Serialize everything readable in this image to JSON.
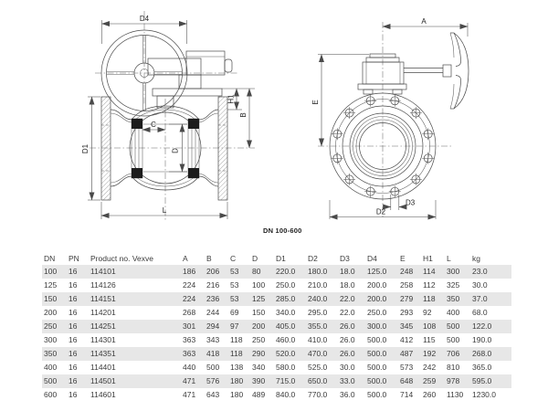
{
  "title": "DN 100-600",
  "drawing": {
    "left_view_labels": {
      "d4": "D4",
      "h1": "H1",
      "b": "B",
      "c": "C",
      "d1": "D1",
      "d": "D",
      "l": "L"
    },
    "right_view_labels": {
      "a": "A",
      "e": "E",
      "d3": "D3",
      "d2": "D2"
    }
  },
  "table": {
    "columns": [
      "DN",
      "PN",
      "Product no. Vexve",
      "A",
      "B",
      "C",
      "D",
      "D1",
      "D2",
      "D3",
      "D4",
      "E",
      "H1",
      "L",
      "kg"
    ],
    "rows": [
      [
        "100",
        "16",
        "114101",
        "186",
        "206",
        "53",
        "80",
        "220.0",
        "180.0",
        "18.0",
        "125.0",
        "248",
        "114",
        "300",
        "23.0"
      ],
      [
        "125",
        "16",
        "114126",
        "224",
        "216",
        "53",
        "100",
        "250.0",
        "210.0",
        "18.0",
        "200.0",
        "258",
        "112",
        "325",
        "30.0"
      ],
      [
        "150",
        "16",
        "114151",
        "224",
        "236",
        "53",
        "125",
        "285.0",
        "240.0",
        "22.0",
        "200.0",
        "279",
        "118",
        "350",
        "37.0"
      ],
      [
        "200",
        "16",
        "114201",
        "268",
        "244",
        "69",
        "150",
        "340.0",
        "295.0",
        "22.0",
        "250.0",
        "293",
        "92",
        "400",
        "68.0"
      ],
      [
        "250",
        "16",
        "114251",
        "301",
        "294",
        "97",
        "200",
        "405.0",
        "355.0",
        "26.0",
        "300.0",
        "345",
        "108",
        "500",
        "122.0"
      ],
      [
        "300",
        "16",
        "114301",
        "363",
        "343",
        "118",
        "250",
        "460.0",
        "410.0",
        "26.0",
        "500.0",
        "412",
        "115",
        "500",
        "190.0"
      ],
      [
        "350",
        "16",
        "114351",
        "363",
        "418",
        "118",
        "290",
        "520.0",
        "470.0",
        "26.0",
        "500.0",
        "487",
        "192",
        "706",
        "268.0"
      ],
      [
        "400",
        "16",
        "114401",
        "440",
        "500",
        "138",
        "340",
        "580.0",
        "525.0",
        "30.0",
        "500.0",
        "573",
        "242",
        "810",
        "365.0"
      ],
      [
        "500",
        "16",
        "114501",
        "471",
        "576",
        "180",
        "390",
        "715.0",
        "650.0",
        "33.0",
        "500.0",
        "648",
        "259",
        "978",
        "595.0"
      ],
      [
        "600",
        "16",
        "114601",
        "471",
        "643",
        "180",
        "489",
        "840.0",
        "770.0",
        "36.0",
        "500.0",
        "714",
        "260",
        "1130",
        "1230.0"
      ]
    ],
    "shaded_row_indexes": [
      0,
      2,
      4,
      6,
      8
    ]
  },
  "colors": {
    "row_shade": "#e7e7e7",
    "line": "#4a4a4a",
    "text": "#3c3c3c"
  }
}
